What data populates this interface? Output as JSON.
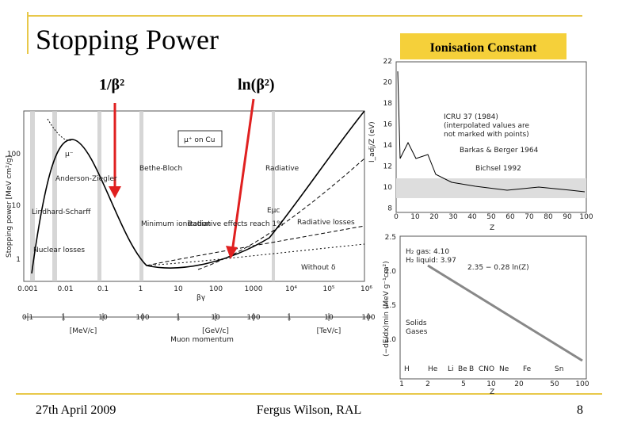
{
  "header": {
    "title": "Stopping Power",
    "badge": "Ionisation Constant"
  },
  "labels": {
    "inverse_beta": "1/β²",
    "log_beta": "ln(β²)"
  },
  "main_plot": {
    "y_axis_title": "Stopping power [MeV cm²/g]",
    "y_ticks": [
      "100",
      "10",
      "1"
    ],
    "x_ticks": [
      "0.001",
      "0.01",
      "0.1",
      "1",
      "10",
      "100",
      "1000",
      "10⁴",
      "10⁵",
      "10⁶"
    ],
    "x_axis_title": "βγ",
    "momentum_groups": [
      {
        "ticks": [
          "0.1",
          "1",
          "10",
          "100"
        ],
        "unit": "[MeV/c]"
      },
      {
        "ticks": [
          "1",
          "10",
          "100"
        ],
        "unit": "[GeV/c]"
      },
      {
        "ticks": [
          "1",
          "10",
          "100"
        ],
        "unit": "[TeV/c]"
      }
    ],
    "momentum_title": "Muon momentum",
    "legend": "μ⁺ on Cu",
    "annotations": [
      "μ⁻",
      "Bethe-Bloch",
      "Radiative",
      "Anderson-Ziegler",
      "Lindhard-Scharff",
      "Nuclear losses",
      "Minimum ionization",
      "Radiative effects reach 1%",
      "Radiative losses",
      "Without δ",
      "Eμc"
    ]
  },
  "ion_plot": {
    "y_axis_title": "I_adj/Z (eV)",
    "y_ticks": [
      "22",
      "20",
      "18",
      "16",
      "14",
      "12",
      "10",
      "8"
    ],
    "x_ticks": [
      "0",
      "10",
      "20",
      "30",
      "40",
      "50",
      "60",
      "70",
      "80",
      "90",
      "100"
    ],
    "x_axis_title": "Z",
    "annotations": [
      "ICRU 37 (1984)",
      "(interpolated values are",
      "not marked with points)",
      "Barkas & Berger 1964",
      "Bichsel 1992"
    ]
  },
  "dedx_plot": {
    "y_axis_title": "⟨−dE/dx⟩min (MeV g⁻¹cm²)",
    "y_ticks": [
      "2.5",
      "2.0",
      "1.5",
      "1.0"
    ],
    "x_ticks": [
      "1",
      "2",
      "5",
      "10",
      "20",
      "50",
      "100"
    ],
    "x_axis_title": "Z",
    "annotations": [
      "H₂ gas: 4.10",
      "H₂ liquid: 3.97",
      "2.35 − 0.28 ln(Z)",
      "Solids",
      "Gases"
    ],
    "elements": [
      "H",
      "He",
      "Li",
      "Be",
      "B",
      "CNO",
      "Ne",
      "Fe",
      "Sn"
    ]
  },
  "footer": {
    "date": "27th April 2009",
    "author": "Fergus Wilson, RAL",
    "page": "8"
  }
}
